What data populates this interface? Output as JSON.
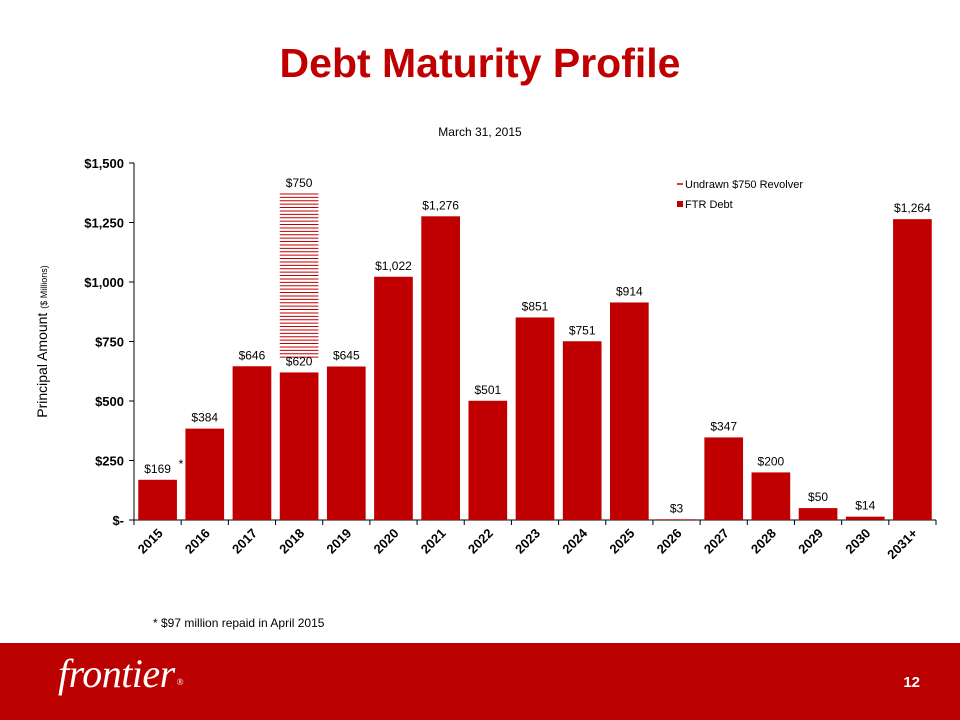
{
  "slide": {
    "title": "Debt Maturity Profile",
    "footnote": "* $97 million repaid in April 2015",
    "page_number": "12",
    "logo_text": "frontier",
    "logo_mark": "®"
  },
  "colors": {
    "bar": "#c00000",
    "footer": "#bb0000",
    "hatch": "#c00000"
  },
  "chart_data": {
    "type": "bar",
    "title": "March 31, 2015",
    "ylabel": "Principal Amount",
    "ylabel_suffix": "($ Millions)",
    "ylim": [
      0,
      1500
    ],
    "yticks": [
      0,
      250,
      500,
      750,
      1000,
      1250,
      1500
    ],
    "ytick_labels": [
      "$-",
      "$250",
      "$500",
      "$750",
      "$1,000",
      "$1,250",
      "$1,500"
    ],
    "categories": [
      "2015",
      "2016",
      "2017",
      "2018",
      "2019",
      "2020",
      "2021",
      "2022",
      "2023",
      "2024",
      "2025",
      "2026",
      "2027",
      "2028",
      "2029",
      "2030",
      "2031+"
    ],
    "series": [
      {
        "name": "FTR Debt",
        "values": [
          169,
          384,
          646,
          620,
          645,
          1022,
          1276,
          501,
          851,
          751,
          914,
          3,
          347,
          200,
          50,
          14,
          1264
        ],
        "labels": [
          "$169",
          "$384",
          "$646",
          "$620",
          "$645",
          "$1,022",
          "$1,276",
          "$501",
          "$851",
          "$751",
          "$914",
          "$3",
          "$347",
          "$200",
          "$50",
          "$14",
          "$1,264"
        ]
      },
      {
        "name": "Undrawn $750 Revolver",
        "category": "2018",
        "base": 620,
        "value": 750,
        "label": "$750"
      }
    ],
    "annotation": "*",
    "legend_position": "top-right"
  }
}
